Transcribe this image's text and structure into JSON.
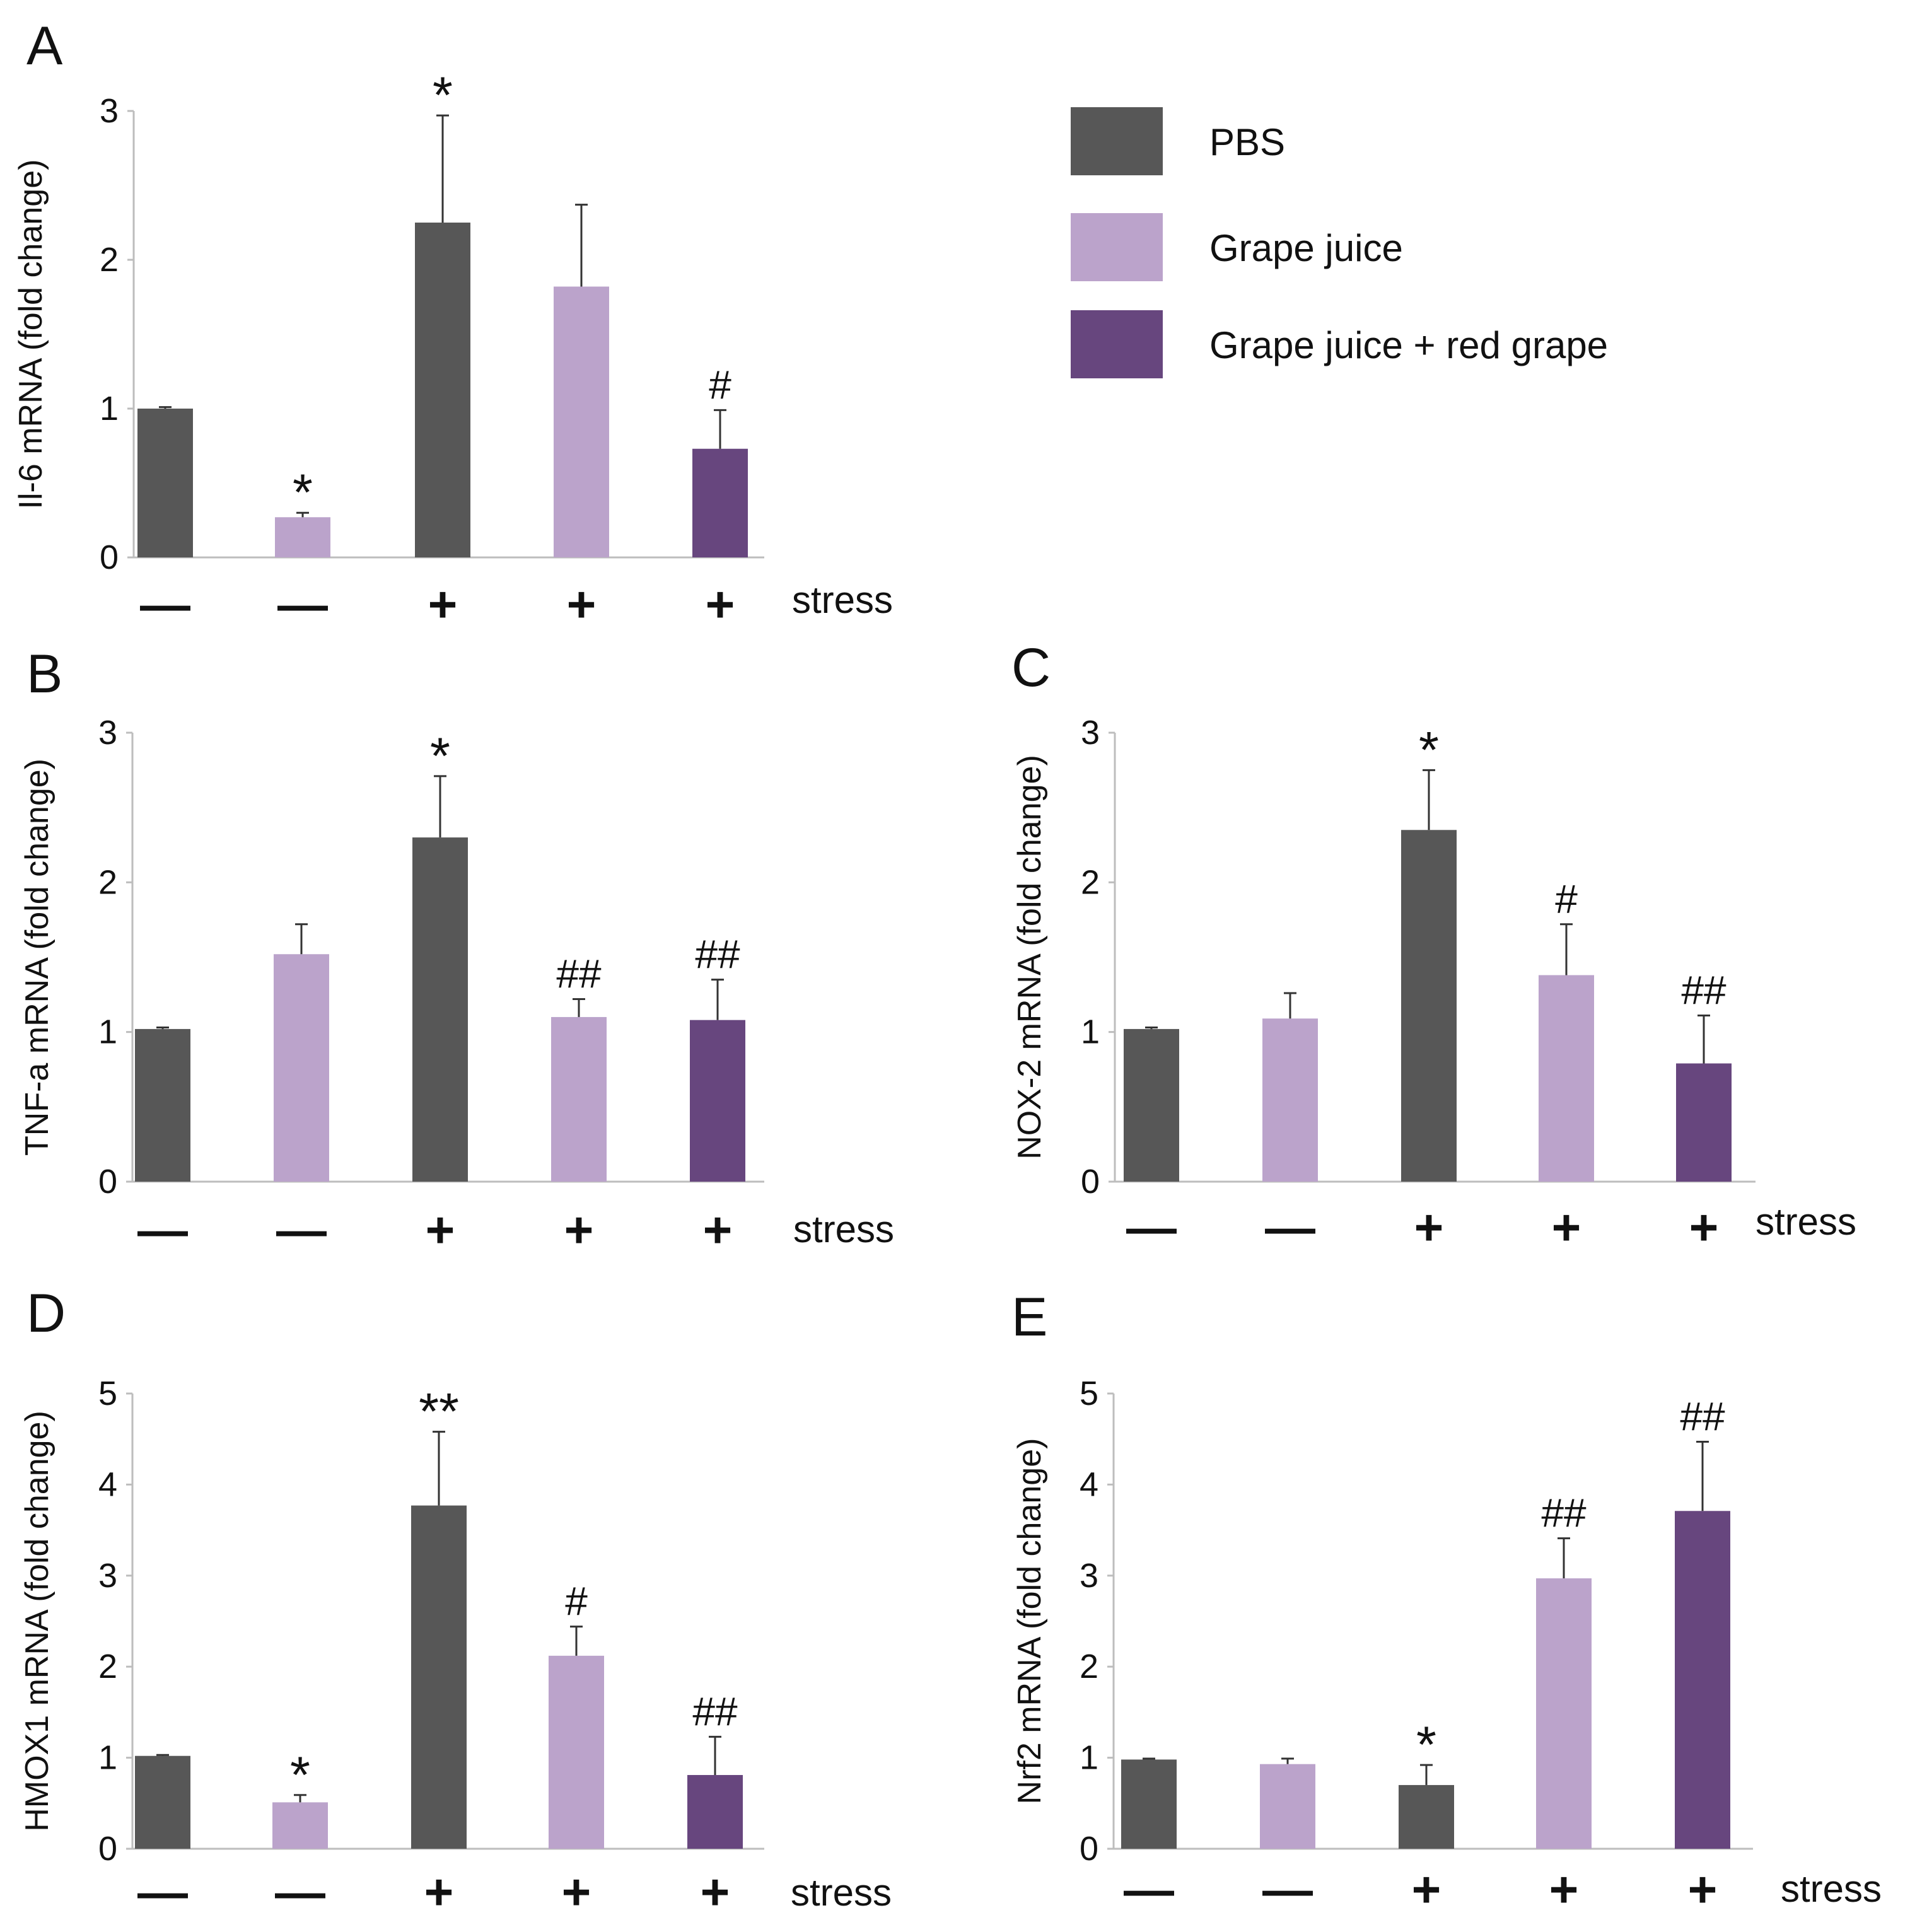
{
  "legend": [
    {
      "label": "PBS",
      "color": "#575757"
    },
    {
      "label": "Grape juice",
      "color": "#bba3cb"
    },
    {
      "label": "Grape juice + red grape",
      "color": "#67467e"
    }
  ],
  "chart_data": [
    {
      "type": "bar",
      "panel": "A",
      "ylabel": "Il-6 mRNA (fold change)",
      "ylim": [
        0,
        3
      ],
      "yticks": [
        0,
        1,
        2,
        3
      ],
      "groups": [
        "PBS",
        "Grape juice",
        "PBS",
        "Grape juice",
        "Grape juice + red grape"
      ],
      "colors": [
        "#575757",
        "#bba3cb",
        "#575757",
        "#bba3cb",
        "#67467e"
      ],
      "values": [
        1.0,
        0.27,
        2.25,
        1.82,
        0.73
      ],
      "errors": [
        0.01,
        0.03,
        0.72,
        0.55,
        0.26
      ],
      "stress": [
        "—",
        "—",
        "+",
        "+",
        "+"
      ],
      "stress_label": "stress",
      "annotations": [
        "",
        "*",
        "*",
        "",
        "#"
      ]
    },
    {
      "type": "bar",
      "panel": "B",
      "ylabel": "TNF-a mRNA (fold change)",
      "ylim": [
        0,
        3
      ],
      "yticks": [
        0,
        1,
        2,
        3
      ],
      "groups": [
        "PBS",
        "Grape juice",
        "PBS",
        "Grape juice",
        "Grape juice + red grape"
      ],
      "colors": [
        "#575757",
        "#bba3cb",
        "#575757",
        "#bba3cb",
        "#67467e"
      ],
      "values": [
        1.02,
        1.52,
        2.3,
        1.1,
        1.08
      ],
      "errors": [
        0.01,
        0.2,
        0.41,
        0.12,
        0.27
      ],
      "stress": [
        "—",
        "—",
        "+",
        "+",
        "+"
      ],
      "stress_label": "stress",
      "annotations": [
        "",
        "",
        "*",
        "##",
        "##"
      ]
    },
    {
      "type": "bar",
      "panel": "C",
      "ylabel": "NOX-2 mRNA (fold change)",
      "ylim": [
        0,
        3
      ],
      "yticks": [
        0,
        1,
        2,
        3
      ],
      "groups": [
        "PBS",
        "Grape juice",
        "PBS",
        "Grape juice",
        "Grape juice + red grape"
      ],
      "colors": [
        "#575757",
        "#bba3cb",
        "#575757",
        "#bba3cb",
        "#67467e"
      ],
      "values": [
        1.02,
        1.09,
        2.35,
        1.38,
        0.79
      ],
      "errors": [
        0.01,
        0.17,
        0.4,
        0.34,
        0.32
      ],
      "stress": [
        "—",
        "—",
        "+",
        "+",
        "+"
      ],
      "stress_label": "stress",
      "annotations": [
        "",
        "",
        "*",
        "#",
        "##"
      ]
    },
    {
      "type": "bar",
      "panel": "D",
      "ylabel": "HMOX1 mRNA (fold change)",
      "ylim": [
        0,
        5
      ],
      "yticks": [
        0,
        1,
        2,
        3,
        4,
        5
      ],
      "groups": [
        "PBS",
        "Grape juice",
        "PBS",
        "Grape juice",
        "Grape juice + red grape"
      ],
      "colors": [
        "#575757",
        "#bba3cb",
        "#575757",
        "#bba3cb",
        "#67467e"
      ],
      "values": [
        1.02,
        0.51,
        3.77,
        2.12,
        0.81
      ],
      "errors": [
        0.01,
        0.08,
        0.81,
        0.32,
        0.42
      ],
      "stress": [
        "—",
        "—",
        "+",
        "+",
        "+"
      ],
      "stress_label": "stress",
      "annotations": [
        "",
        "*",
        "**",
        "#",
        "##"
      ]
    },
    {
      "type": "bar",
      "panel": "E",
      "ylabel": "Nrf2 mRNA (fold change)",
      "ylim": [
        0,
        5
      ],
      "yticks": [
        0,
        1,
        2,
        3,
        4,
        5
      ],
      "groups": [
        "PBS",
        "Grape juice",
        "PBS",
        "Grape juice",
        "Grape juice + red grape"
      ],
      "colors": [
        "#575757",
        "#bba3cb",
        "#575757",
        "#bba3cb",
        "#67467e"
      ],
      "values": [
        0.98,
        0.93,
        0.7,
        2.97,
        3.71
      ],
      "errors": [
        0.01,
        0.06,
        0.22,
        0.44,
        0.76
      ],
      "stress": [
        "—",
        "—",
        "+",
        "+",
        "+"
      ],
      "stress_label": "stress",
      "annotations": [
        "",
        "",
        "*",
        "##",
        "##"
      ]
    }
  ]
}
